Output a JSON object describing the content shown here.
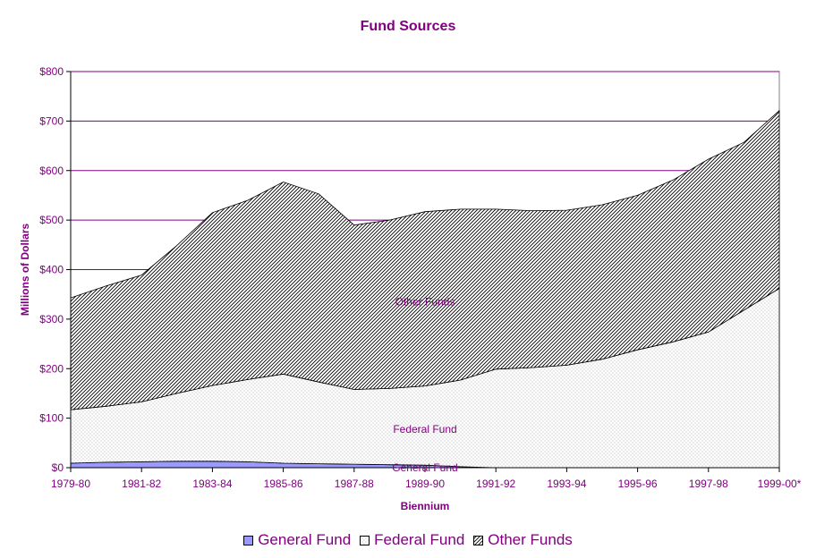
{
  "chart_data": {
    "type": "area",
    "title": "Fund Sources",
    "xlabel": "Biennium",
    "ylabel": "Millions of Dollars",
    "x": [
      "1979-80",
      "1980-81",
      "1981-82",
      "1982-83",
      "1983-84",
      "1984-85",
      "1985-86",
      "1986-87",
      "1987-88",
      "1988-89",
      "1989-90",
      "1990-91",
      "1991-92",
      "1992-93",
      "1993-94",
      "1994-95",
      "1995-96",
      "1996-97",
      "1997-98",
      "1998-99",
      "1999-00*"
    ],
    "xticks": [
      "1979-80",
      "1981-82",
      "1983-84",
      "1985-86",
      "1987-88",
      "1989-90",
      "1991-92",
      "1993-94",
      "1995-96",
      "1997-98",
      "1999-00*"
    ],
    "ylim": [
      0,
      800
    ],
    "yticks": [
      "$0",
      "$100",
      "$200",
      "$300",
      "$400",
      "$500",
      "$600",
      "$700",
      "$800"
    ],
    "series": [
      {
        "name": "General Fund",
        "color": "#9999ff",
        "values": [
          9,
          11,
          12,
          13,
          13,
          12,
          9,
          8,
          7,
          6,
          5,
          2,
          0,
          0,
          0,
          0,
          0,
          0,
          0,
          0,
          0
        ]
      },
      {
        "name": "Federal Fund",
        "color": "#ffffff",
        "values": [
          108,
          113,
          121,
          137,
          153,
          166,
          180,
          165,
          151,
          154,
          160,
          175,
          199,
          202,
          207,
          219,
          238,
          254,
          274,
          318,
          362
        ]
      },
      {
        "name": "Other Funds",
        "color": "#ffffff",
        "values": [
          226,
          243,
          256,
          299,
          349,
          362,
          388,
          380,
          332,
          340,
          352,
          345,
          323,
          317,
          313,
          312,
          312,
          327,
          349,
          339,
          359
        ]
      }
    ],
    "stacked": true,
    "annotations": [
      "Other Funds",
      "Federal Fund",
      "General Fund"
    ],
    "grid": true,
    "legend_position": "bottom"
  },
  "legend": {
    "general_fund": "General Fund",
    "federal_fund": "Federal Fund",
    "other_funds": "Other Funds"
  }
}
